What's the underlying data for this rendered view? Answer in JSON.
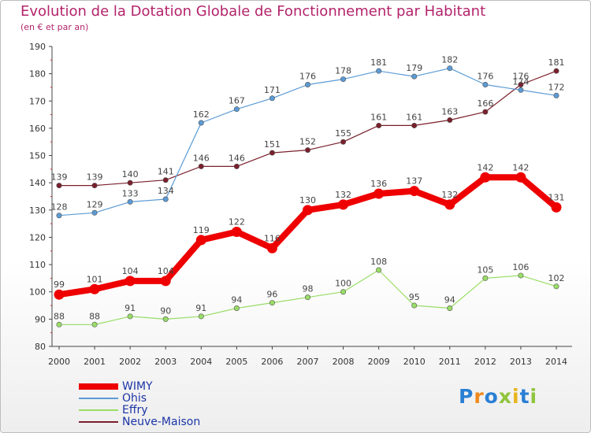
{
  "chart_data": {
    "type": "line",
    "title": "Evolution de la Dotation Globale de Fonctionnement par Habitant",
    "subtitle": "(en € et par an)",
    "xlabel": "",
    "ylabel": "",
    "x": [
      "2000",
      "2001",
      "2002",
      "2003",
      "2004",
      "2005",
      "2006",
      "2007",
      "2008",
      "2009",
      "2010",
      "2011",
      "2012",
      "2013",
      "2014"
    ],
    "ylim": [
      80,
      190
    ],
    "yticks": [
      80,
      90,
      100,
      110,
      120,
      130,
      140,
      150,
      160,
      170,
      180,
      190
    ],
    "grid": false,
    "legend_position": "bottom-left",
    "series": [
      {
        "name": "WIMY",
        "color": "#ee0000",
        "values": [
          99,
          101,
          104,
          104,
          119,
          122,
          116,
          130,
          132,
          136,
          137,
          132,
          142,
          142,
          131
        ]
      },
      {
        "name": "Ohis",
        "color": "#5b9bd5",
        "values": [
          128,
          129,
          133,
          134,
          162,
          167,
          171,
          176,
          178,
          181,
          179,
          182,
          176,
          174,
          172
        ]
      },
      {
        "name": "Effry",
        "color": "#99dd66",
        "values": [
          88,
          88,
          91,
          90,
          91,
          94,
          96,
          98,
          100,
          108,
          95,
          94,
          105,
          106,
          102
        ]
      },
      {
        "name": "Neuve-Maison",
        "color": "#7a1f2b",
        "values": [
          139,
          139,
          140,
          141,
          146,
          146,
          151,
          152,
          155,
          161,
          161,
          163,
          166,
          176,
          181
        ]
      }
    ]
  },
  "logo": {
    "letters": [
      "P",
      "r",
      "o",
      "x",
      "i",
      "t",
      "i"
    ],
    "colors": [
      "#2a7fd4",
      "#f08a1c",
      "#2a7fd4",
      "#8fc43c",
      "#e8b41a",
      "#2a7fd4",
      "#8fc43c"
    ]
  }
}
